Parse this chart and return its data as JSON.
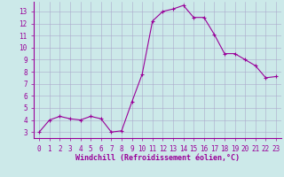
{
  "x": [
    0,
    1,
    2,
    3,
    4,
    5,
    6,
    7,
    8,
    9,
    10,
    11,
    12,
    13,
    14,
    15,
    16,
    17,
    18,
    19,
    20,
    21,
    22,
    23
  ],
  "y": [
    3.0,
    4.0,
    4.3,
    4.1,
    4.0,
    4.3,
    4.1,
    3.0,
    3.1,
    5.5,
    7.8,
    12.2,
    13.0,
    13.2,
    13.5,
    12.5,
    12.5,
    11.1,
    9.5,
    9.5,
    9.0,
    8.5,
    7.5,
    7.6
  ],
  "line_color": "#990099",
  "marker": "+",
  "marker_size": 3,
  "background_color": "#cce9e9",
  "grid_color": "#aaaacc",
  "xlabel": "Windchill (Refroidissement éolien,°C)",
  "xlabel_color": "#990099",
  "ylabel_ticks": [
    3,
    4,
    5,
    6,
    7,
    8,
    9,
    10,
    11,
    12,
    13
  ],
  "ylim": [
    2.5,
    13.8
  ],
  "xlim": [
    -0.5,
    23.5
  ],
  "tick_color": "#990099",
  "xtick_fontsize": 5.5,
  "ytick_fontsize": 5.5,
  "xlabel_fontsize": 6.0
}
